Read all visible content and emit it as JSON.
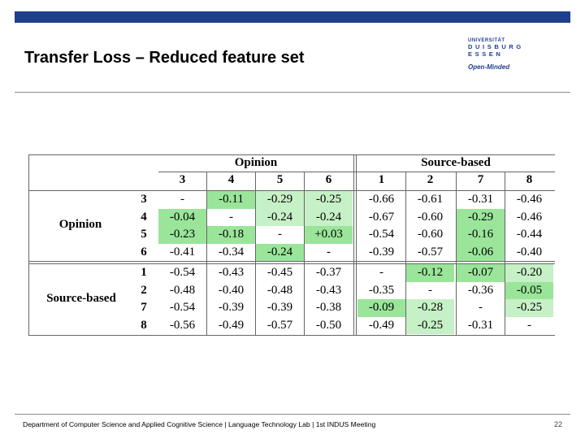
{
  "slide": {
    "title": "Transfer Loss – Reduced feature set",
    "footer": "Department of Computer Science and Applied Cognitive Science | Language Technology Lab | 1st INDUS Meeting",
    "page_number": "22",
    "accent_color": "#1f3f8c"
  },
  "logo": {
    "top_text": "UNIVERSITÄT",
    "name_line1": "DUISBURG",
    "name_line2": "ESSEN",
    "slogan": "Open-Minded"
  },
  "table": {
    "group_headers": [
      "Opinion",
      "Source-based"
    ],
    "column_labels": [
      "3",
      "4",
      "5",
      "6",
      "1",
      "2",
      "7",
      "8"
    ],
    "row_groups": [
      {
        "label": "Opinion",
        "rows": [
          {
            "id": "3",
            "values": [
              "-",
              "-0.11",
              "-0.29",
              "-0.25",
              "-0.66",
              "-0.61",
              "-0.31",
              "-0.46"
            ]
          },
          {
            "id": "4",
            "values": [
              "-0.04",
              "-",
              "-0.24",
              "-0.24",
              "-0.67",
              "-0.60",
              "-0.29",
              "-0.46"
            ]
          },
          {
            "id": "5",
            "values": [
              "-0.23",
              "-0.18",
              "-",
              "+0.03",
              "-0.54",
              "-0.60",
              "-0.16",
              "-0.44"
            ]
          },
          {
            "id": "6",
            "values": [
              "-0.41",
              "-0.34",
              "-0.24",
              "-",
              "-0.39",
              "-0.57",
              "-0.06",
              "-0.40"
            ]
          }
        ]
      },
      {
        "label": "Source-based",
        "rows": [
          {
            "id": "1",
            "values": [
              "-0.54",
              "-0.43",
              "-0.45",
              "-0.37",
              "-",
              "-0.12",
              "-0.07",
              "-0.20"
            ]
          },
          {
            "id": "2",
            "values": [
              "-0.48",
              "-0.40",
              "-0.48",
              "-0.43",
              "-0.35",
              "-",
              "-0.36",
              "-0.05"
            ]
          },
          {
            "id": "7",
            "values": [
              "-0.54",
              "-0.39",
              "-0.39",
              "-0.38",
              "-0.09",
              "-0.28",
              "-",
              "-0.25"
            ]
          },
          {
            "id": "8",
            "values": [
              "-0.56",
              "-0.49",
              "-0.57",
              "-0.50",
              "-0.49",
              "-0.25",
              "-0.31",
              "-"
            ]
          }
        ]
      }
    ],
    "highlight_colors": {
      "strong": "#9ae59a",
      "light": "#c6f0c6"
    },
    "highlights": [
      [
        "",
        "strong",
        "light",
        "light",
        "",
        "",
        "",
        ""
      ],
      [
        "strong",
        "",
        "light",
        "light",
        "",
        "",
        "strong",
        ""
      ],
      [
        "strong",
        "strong",
        "",
        "strong",
        "",
        "",
        "strong",
        ""
      ],
      [
        "",
        "",
        "strong",
        "",
        "",
        "",
        "strong",
        ""
      ],
      [
        "",
        "",
        "",
        "",
        "",
        "strong",
        "strong",
        "light"
      ],
      [
        "",
        "",
        "",
        "",
        "",
        "",
        "",
        "strong"
      ],
      [
        "",
        "",
        "",
        "",
        "strong",
        "light",
        "",
        "light"
      ],
      [
        "",
        "",
        "",
        "",
        "",
        "light",
        "",
        ""
      ]
    ]
  }
}
